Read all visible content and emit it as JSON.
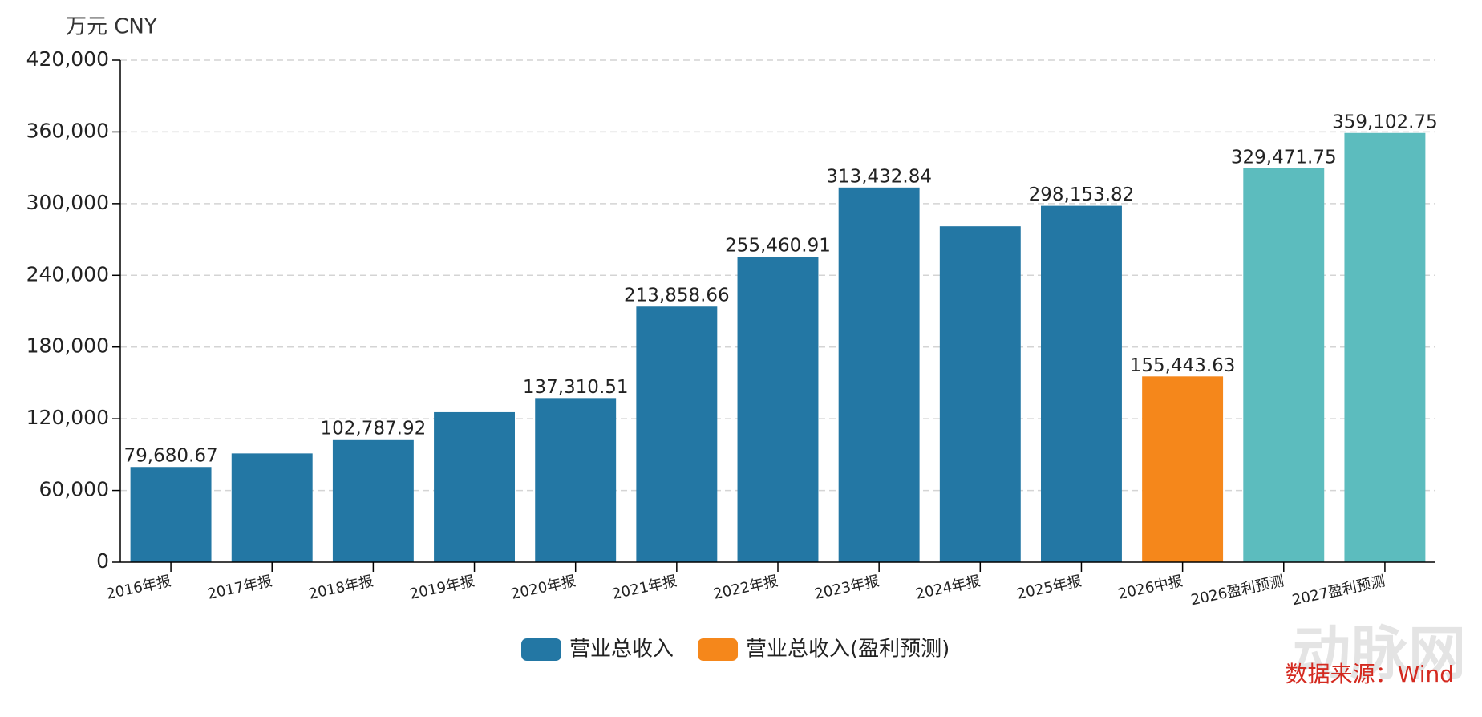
{
  "chart_data": {
    "type": "bar",
    "unit_label": "万元  CNY",
    "categories": [
      "2016年报",
      "2017年报",
      "2018年报",
      "2019年报",
      "2020年报",
      "2021年报",
      "2022年报",
      "2023年报",
      "2024年报",
      "2025年报",
      "2026中报",
      "2026盈利预测",
      "2027盈利预测"
    ],
    "values": [
      79680.67,
      91000,
      102787.92,
      125500,
      137310.51,
      213858.66,
      255460.91,
      313432.84,
      281000,
      298153.82,
      155443.63,
      329471.75,
      359102.75
    ],
    "value_labels": [
      "79,680.67",
      null,
      "102,787.92",
      null,
      "137,310.51",
      "213,858.66",
      "255,460.91",
      "313,432.84",
      null,
      "298,153.82",
      "155,443.63",
      "329,471.75",
      "359,102.75"
    ],
    "colors": [
      "#2377a4",
      "#2377a4",
      "#2377a4",
      "#2377a4",
      "#2377a4",
      "#2377a4",
      "#2377a4",
      "#2377a4",
      "#2377a4",
      "#2377a4",
      "#f5871b",
      "#5cbcbe",
      "#5cbcbe"
    ],
    "legend": [
      {
        "name": "营业总收入",
        "color": "#2377a4"
      },
      {
        "name": "营业总收入(盈利预测)",
        "color": "#f5871b"
      }
    ],
    "ylim": [
      0,
      420000
    ],
    "yticks": [
      0,
      {
        "value": 60000,
        "label": "60,000"
      },
      {
        "value": 120000,
        "label": "120,000"
      },
      {
        "value": 180000,
        "label": "180,000"
      },
      {
        "value": 240000,
        "label": "240,000"
      },
      {
        "value": 300000,
        "label": "300,000"
      },
      {
        "value": 360000,
        "label": "360,000"
      },
      {
        "value": 420000,
        "label": "420,000"
      }
    ],
    "grid": true,
    "source": "数据来源：Wind",
    "watermark": "动脉网"
  }
}
